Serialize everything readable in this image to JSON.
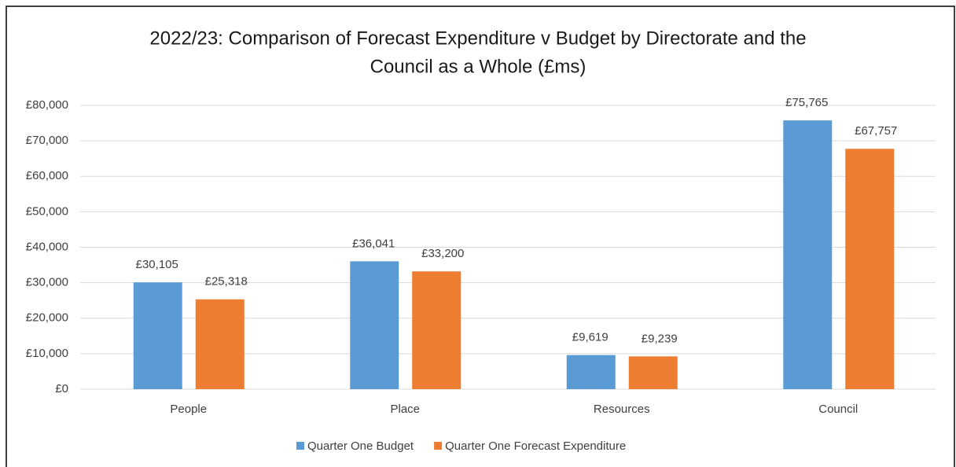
{
  "chart_data": {
    "type": "bar",
    "title": [
      "2022/23:  Comparison of Forecast Expenditure v Budget by Directorate and the",
      "Council as a Whole (£ms)"
    ],
    "categories": [
      "People",
      "Place",
      "Resources",
      "Council"
    ],
    "series": [
      {
        "name": "Quarter One Budget",
        "color": "#5b9bd5",
        "values": [
          30105,
          36041,
          9619,
          75765
        ],
        "value_labels": [
          "£30,105",
          "£36,041",
          "£9,619",
          "£75,765"
        ]
      },
      {
        "name": "Quarter One Forecast Expenditure",
        "color": "#ed7d31",
        "values": [
          25318,
          33200,
          9239,
          67757
        ],
        "value_labels": [
          "£25,318",
          "£33,200",
          "£9,239",
          "£67,757"
        ]
      }
    ],
    "ylim": [
      0,
      80000
    ],
    "yticks": [
      {
        "value": 0,
        "label": "£0"
      },
      {
        "value": 10000,
        "label": "£10,000"
      },
      {
        "value": 20000,
        "label": "£20,000"
      },
      {
        "value": 30000,
        "label": "£30,000"
      },
      {
        "value": 40000,
        "label": "£40,000"
      },
      {
        "value": 50000,
        "label": "£50,000"
      },
      {
        "value": 60000,
        "label": "£60,000"
      },
      {
        "value": 70000,
        "label": "£70,000"
      },
      {
        "value": 80000,
        "label": "£80,000"
      }
    ],
    "grid": true,
    "legend": "bottom"
  }
}
